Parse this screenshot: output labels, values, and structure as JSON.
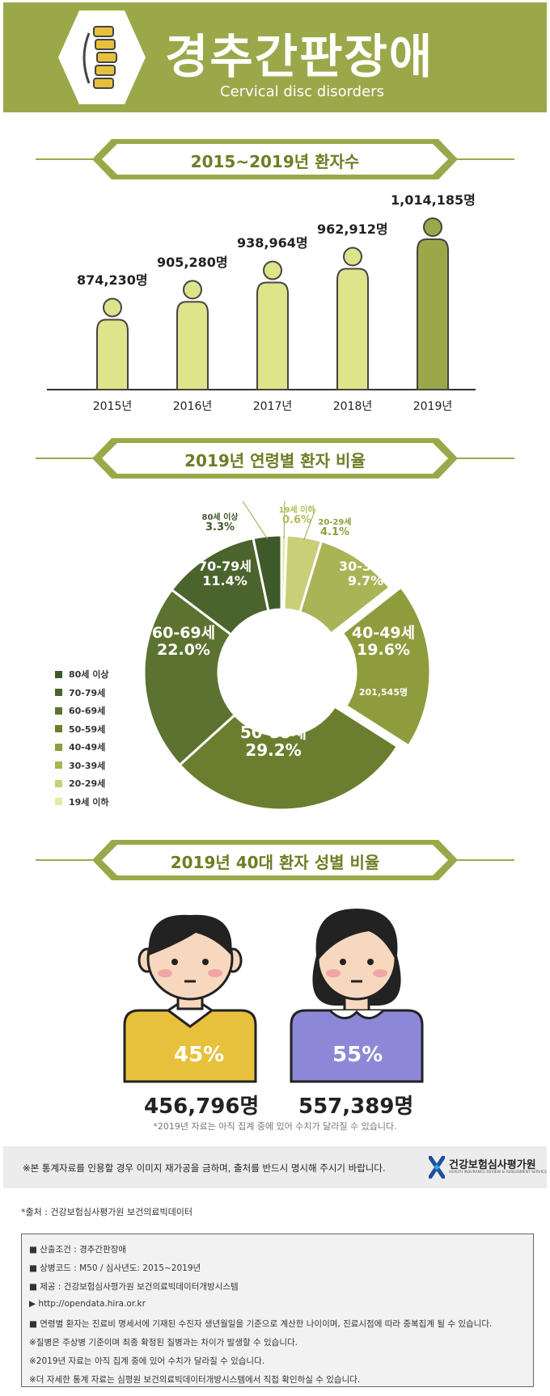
{
  "header": {
    "title": "경추간판장애",
    "subtitle": "Cervical disc disorders",
    "colors": {
      "background": "#9ba84a",
      "text": "#ffffff"
    }
  },
  "sections": {
    "patients_title": "2015~2019년 환자수",
    "age_title": "2019년 연령별 환자 비율",
    "gender_title": "2019년 40대 환자 성별 비율"
  },
  "chart_data": [
    {
      "type": "bar",
      "title": "2015~2019년 환자수",
      "categories": [
        "2015년",
        "2016년",
        "2017년",
        "2018년",
        "2019년"
      ],
      "values": [
        874230,
        905280,
        938964,
        962912,
        1014185
      ],
      "value_labels": [
        "874,230명",
        "905,280명",
        "938,964명",
        "962,912명",
        "1,014,185명"
      ],
      "colors": [
        "#dde48a",
        "#dde48a",
        "#dde48a",
        "#dde48a",
        "#9ba84a"
      ]
    },
    {
      "type": "pie",
      "title": "2019년 연령별 환자 비율",
      "categories": [
        "19세 이하",
        "20-29세",
        "30-39세",
        "40-49세",
        "50-59세",
        "60-69세",
        "70-79세",
        "80세 이상"
      ],
      "values": [
        0.6,
        4.1,
        9.7,
        19.6,
        29.2,
        22.0,
        11.4,
        3.3
      ],
      "percent_labels": [
        "0.6%",
        "4.1%",
        "9.7%",
        "19.6%",
        "29.2%",
        "22.0%",
        "11.4%",
        "3.3%"
      ],
      "extra_label": "201,545명",
      "colors": [
        "#e6e9a4",
        "#c9cf78",
        "#a9b456",
        "#8f9c3d",
        "#6b7e2f",
        "#5c7230",
        "#4b632c",
        "#3f5a2a"
      ],
      "legend": [
        "80세 이상",
        "70-79세",
        "60-69세",
        "50-59세",
        "40-49세",
        "30-39세",
        "20-29세",
        "19세 이하"
      ],
      "legend_colors": [
        "#3f5a2a",
        "#4b632c",
        "#5c7230",
        "#6b7e2f",
        "#8f9c3d",
        "#a9b456",
        "#c9cf78",
        "#e6e9a4"
      ],
      "legend_placement": "left"
    },
    {
      "type": "bar",
      "title": "2019년 40대 환자 성별 비율",
      "categories": [
        "남",
        "여"
      ],
      "percents": [
        "45%",
        "55%"
      ],
      "values": [
        456796,
        557389
      ],
      "value_labels": [
        "456,796명",
        "557,389명"
      ],
      "colors": [
        "#e8c13c",
        "#8d87d8"
      ]
    }
  ],
  "note": "*2019년 자료는 아직 집계 중에 있어 수치가 달라질 수 있습니다.",
  "notice": "※본 통계자료를 인용할 경우 이미지 재가공을 금하며, 출처를 반드시 명시해 주시기 바랍니다.",
  "org": {
    "name": "건강보험심사평가원",
    "sub": "HEALTH INSURANCE REVIEW & ASSESSMENT SERVICE"
  },
  "source": "*출처 : 건강보험심사평가원 보건의료빅데이터",
  "info": [
    "■ 산출조건 : 경추간판장애",
    "■ 상병코드 : M50 / 심사년도: 2015~2019년",
    "■ 제공 : 건강보험심사평가원 보건의료빅데이터개방시스템",
    "▶ http://opendata.hira.or.kr",
    "■ 연령별 환자는 진료비 명세서에 기재된 수진자 생년월일을 기준으로 계산한 나이이며, 진료시점에 따라 중복집계 될 수 있습니다.",
    "※질병은 주상병 기준이며 최종 확정된 질병과는 차이가 발생할 수 있습니다.",
    "※2019년 자료는 아직 집계 중에 있어 수치가 달라질 수 있습니다.",
    "※더 자세한 통계 자료는 심평원 보건의료빅데이터개방시스템에서 직접 확인하실 수 있습니다."
  ]
}
